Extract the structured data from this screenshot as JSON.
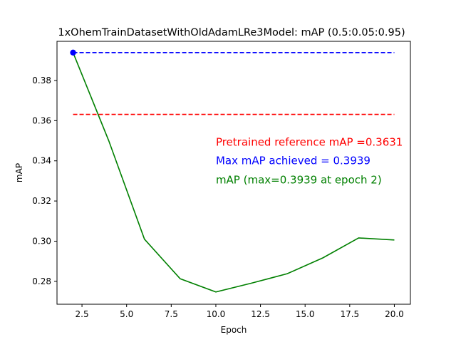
{
  "chart_data": {
    "type": "line",
    "title": "1xOhemTrainDatasetWithOldAdamLRe3Model:  mAP (0.5:0.05:0.95)",
    "xlabel": "Epoch",
    "ylabel": "mAP",
    "xlim": [
      1.1,
      20.9
    ],
    "ylim": [
      0.2686,
      0.3995
    ],
    "grid": false,
    "x_ticks": [
      2.5,
      5.0,
      7.5,
      10.0,
      12.5,
      15.0,
      17.5,
      20.0
    ],
    "x_tick_labels": [
      "2.5",
      "5.0",
      "7.5",
      "10.0",
      "12.5",
      "15.0",
      "17.5",
      "20.0"
    ],
    "y_ticks": [
      0.28,
      0.3,
      0.32,
      0.34,
      0.36,
      0.38
    ],
    "y_tick_labels": [
      "0.28",
      "0.30",
      "0.32",
      "0.34",
      "0.36",
      "0.38"
    ],
    "series": [
      {
        "name": "mAP",
        "color": "#008000",
        "x": [
          2,
          4,
          6,
          8,
          10,
          12,
          14,
          16,
          18,
          20
        ],
        "y": [
          0.3939,
          0.35,
          0.301,
          0.2813,
          0.2747,
          0.2791,
          0.2838,
          0.2917,
          0.3016,
          0.3006
        ]
      }
    ],
    "reference_lines": [
      {
        "value": 0.3939,
        "from_x": 2,
        "to_x": 20,
        "color": "#0000ff",
        "style": "dashed"
      },
      {
        "value": 0.3631,
        "from_x": 2,
        "to_x": 20,
        "color": "#ff0000",
        "style": "dashed"
      }
    ],
    "max_marker": {
      "x": 2,
      "y": 0.3939,
      "color": "#0000ff"
    },
    "annotations": [
      {
        "text": "Pretrained reference mAP =0.3631",
        "color": "#ff0000",
        "data_x": 10,
        "data_y": 0.3475
      },
      {
        "text": "Max mAP achieved = 0.3939",
        "color": "#0000ff",
        "data_x": 10,
        "data_y": 0.3383
      },
      {
        "text": "mAP (max=0.3939 at epoch 2)",
        "color": "#008000",
        "data_x": 10,
        "data_y": 0.3287
      }
    ]
  }
}
